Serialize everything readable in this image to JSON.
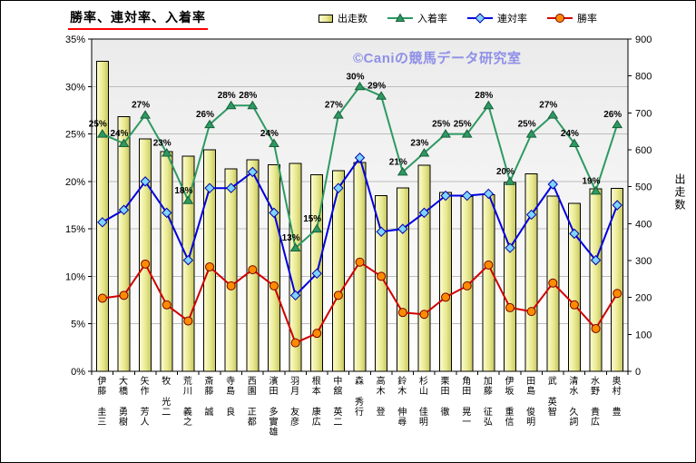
{
  "title": "勝率、連対率、入着率",
  "watermark": "©Caniの競馬データ研究室",
  "legend": {
    "starts": "出走数",
    "place_rate": "入着率",
    "quinella_rate": "連対率",
    "win_rate": "勝率"
  },
  "chart_data": {
    "type": "combo-bar-line",
    "title": "勝率、連対率、入着率",
    "legend_position": "top",
    "grid": true,
    "categories": [
      "伊藤 圭三",
      "大橋 勇樹",
      "矢作 芳人",
      "牧 光二",
      "荒川 義之",
      "斎藤 誠",
      "寺島 良",
      "西園 正都",
      "濱田 多實雄",
      "羽月 友彦",
      "根本 康広",
      "中舘 英二",
      "森 秀行",
      "高木 登",
      "鈴木 伸尋",
      "杉山 佳明",
      "栗田 徹",
      "角田 晃一",
      "加藤 征弘",
      "伊坂 重信",
      "田島 俊明",
      "武 英智",
      "清水 久詞",
      "水野 貴広",
      "奥村 豊"
    ],
    "series": [
      {
        "key": "starts",
        "name": "出走数",
        "type": "bar",
        "axis": "right",
        "color": "#e9e992",
        "values": [
          840,
          690,
          630,
          595,
          583,
          600,
          548,
          573,
          560,
          563,
          532,
          543,
          565,
          476,
          497,
          558,
          484,
          473,
          478,
          512,
          535,
          474,
          455,
          494,
          496
        ]
      },
      {
        "key": "place-rate",
        "name": "入着率",
        "type": "line",
        "marker": "triangle",
        "axis": "left",
        "color": "#2e9962",
        "marker_fill": "#2e9962",
        "marker_stroke": "#17603a",
        "show_labels": true,
        "values": [
          25,
          24,
          27,
          23,
          18,
          26,
          28,
          28,
          24,
          13,
          15,
          27,
          30,
          29,
          21,
          23,
          25,
          25,
          28,
          20,
          25,
          27,
          24,
          19,
          26
        ]
      },
      {
        "key": "quinella-rate",
        "name": "連対率",
        "type": "line",
        "marker": "diamond",
        "axis": "left",
        "color": "#0000dd",
        "marker_fill": "#7fd4ff",
        "marker_stroke": "#0000aa",
        "values": [
          15.7,
          17,
          20,
          16.7,
          11.7,
          19.3,
          19.3,
          21,
          16.7,
          8,
          10.3,
          19.3,
          22.5,
          14.7,
          15,
          16.7,
          18.5,
          18.5,
          18.7,
          13,
          16.5,
          19.7,
          14.5,
          11.7,
          17.5
        ]
      },
      {
        "key": "win-rate",
        "name": "勝率",
        "type": "line",
        "marker": "circle",
        "axis": "left",
        "color": "#d00000",
        "marker_fill": "#ff8c00",
        "marker_stroke": "#7a0000",
        "values": [
          7.7,
          8,
          11.3,
          7,
          5.3,
          11,
          9,
          10.7,
          9,
          3,
          4,
          8,
          11.5,
          10,
          6.2,
          6,
          7.8,
          9,
          11.2,
          6.7,
          6.3,
          9.3,
          7,
          4.5,
          8.2
        ]
      }
    ],
    "left_axis": {
      "min": 0,
      "max": 35,
      "step": 5,
      "format": "percent",
      "tick_labels": [
        "0%",
        "5%",
        "10%",
        "15%",
        "20%",
        "25%",
        "30%",
        "35%"
      ]
    },
    "right_axis": {
      "min": 0,
      "max": 900,
      "step": 100,
      "title": "出走数",
      "tick_labels": [
        "0",
        "100",
        "200",
        "300",
        "400",
        "500",
        "600",
        "700",
        "800",
        "900"
      ]
    }
  }
}
